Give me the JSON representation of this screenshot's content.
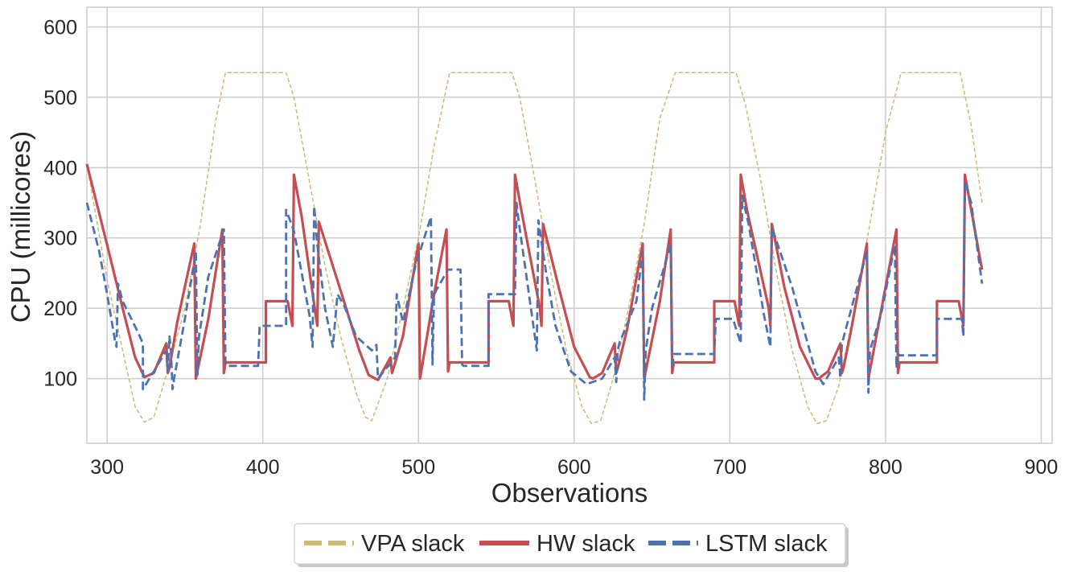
{
  "chart_data": {
    "type": "line",
    "title": "",
    "xlabel": "Observations",
    "ylabel": "CPU (millicores)",
    "xlim": [
      287,
      907
    ],
    "ylim": [
      8,
      628
    ],
    "xticks": [
      300,
      400,
      500,
      600,
      700,
      800,
      900
    ],
    "yticks": [
      100,
      200,
      300,
      400,
      500,
      600
    ],
    "grid": true,
    "legend": {
      "placement": "bottom-center, below plot",
      "entries": [
        "VPA slack",
        "HW slack",
        "LSTM slack"
      ]
    },
    "series": [
      {
        "name": "VPA slack",
        "color": "#ccb974",
        "style": "dashed-thin",
        "x": [
          287,
          300,
          310,
          318,
          324,
          330,
          340,
          350,
          360,
          370,
          376,
          400,
          415,
          420,
          430,
          440,
          450,
          460,
          466,
          470,
          480,
          490,
          500,
          510,
          520,
          540,
          560,
          565,
          575,
          585,
          595,
          605,
          611,
          617,
          625,
          635,
          645,
          655,
          665,
          690,
          704,
          710,
          720,
          730,
          740,
          750,
          756,
          762,
          770,
          780,
          790,
          800,
          810,
          820,
          848,
          855,
          862
        ],
        "y": [
          405,
          240,
          140,
          60,
          38,
          45,
          120,
          200,
          320,
          470,
          535,
          535,
          535,
          500,
          380,
          260,
          160,
          80,
          45,
          40,
          100,
          200,
          300,
          430,
          535,
          535,
          535,
          500,
          380,
          250,
          140,
          60,
          36,
          40,
          100,
          200,
          320,
          470,
          535,
          535,
          535,
          490,
          380,
          250,
          140,
          60,
          36,
          40,
          90,
          200,
          320,
          450,
          535,
          535,
          535,
          460,
          350
        ]
      },
      {
        "name": "HW slack",
        "color": "#c44e52",
        "style": "solid",
        "x": [
          287,
          300,
          310,
          318,
          324,
          330,
          338,
          339,
          340,
          345,
          356,
          357,
          365,
          374,
          375,
          376,
          397,
          402,
          402,
          416,
          419,
          420,
          425,
          434,
          435,
          436,
          450,
          462,
          468,
          474,
          482,
          483,
          484,
          490,
          500,
          501,
          510,
          518,
          519,
          520,
          527,
          540,
          545,
          545,
          558,
          561,
          562,
          566,
          578,
          579,
          580,
          590,
          600,
          610,
          612,
          618,
          626,
          627,
          628,
          634,
          644,
          645,
          655,
          662,
          663,
          664,
          669,
          690,
          690,
          703,
          706,
          707,
          711,
          725,
          726,
          727,
          735,
          745,
          755,
          757,
          763,
          771,
          772,
          773,
          778,
          788,
          789,
          800,
          807,
          808,
          809,
          814,
          833,
          833,
          847,
          850,
          851,
          855,
          862
        ],
        "y": [
          405,
          290,
          200,
          130,
          102,
          108,
          150,
          108,
          115,
          180,
          292,
          100,
          185,
          312,
          108,
          123,
          123,
          123,
          210,
          210,
          175,
          390,
          330,
          190,
          175,
          323,
          225,
          140,
          105,
          98,
          130,
          108,
          115,
          160,
          292,
          100,
          220,
          312,
          110,
          123,
          123,
          123,
          123,
          210,
          210,
          175,
          390,
          340,
          200,
          175,
          320,
          230,
          145,
          102,
          100,
          108,
          150,
          108,
          115,
          170,
          292,
          100,
          210,
          312,
          108,
          123,
          123,
          123,
          210,
          210,
          175,
          390,
          340,
          200,
          175,
          320,
          230,
          145,
          100,
          100,
          110,
          150,
          108,
          115,
          170,
          292,
          100,
          230,
          312,
          108,
          123,
          123,
          123,
          210,
          210,
          175,
          390,
          340,
          255
        ]
      },
      {
        "name": "LSTM slack",
        "color": "#4c72b0",
        "style": "dashed",
        "x": [
          287,
          295,
          300,
          305,
          306,
          307,
          310,
          320,
          323,
          323,
          330,
          338,
          339,
          340,
          341,
          342,
          343,
          350,
          357,
          358,
          359,
          365,
          375,
          376,
          377,
          378,
          382,
          397,
          398,
          415,
          415,
          420,
          430,
          432,
          433,
          435,
          440,
          445,
          448,
          452,
          460,
          470,
          473,
          474,
          485,
          486,
          490,
          498,
          508,
          509,
          510,
          519,
          520,
          527,
          528,
          529,
          545,
          545,
          562,
          563,
          564,
          576,
          577,
          578,
          582,
          588,
          598,
          608,
          618,
          626,
          627,
          628,
          629,
          640,
          644,
          645,
          646,
          650,
          662,
          663,
          664,
          665,
          690,
          691,
          702,
          707,
          708,
          712,
          722,
          726,
          727,
          740,
          755,
          760,
          770,
          771,
          772,
          783,
          788,
          789,
          790,
          797,
          806,
          807,
          808,
          809,
          833,
          833,
          849,
          850,
          851,
          855,
          862
        ],
        "y": [
          350,
          280,
          220,
          155,
          145,
          235,
          210,
          165,
          150,
          85,
          110,
          140,
          110,
          160,
          140,
          85,
          100,
          185,
          280,
          105,
          160,
          245,
          312,
          120,
          118,
          118,
          118,
          118,
          175,
          175,
          340,
          310,
          190,
          145,
          345,
          290,
          200,
          145,
          220,
          205,
          160,
          140,
          148,
          100,
          130,
          220,
          180,
          260,
          330,
          120,
          220,
          255,
          255,
          255,
          120,
          118,
          118,
          220,
          220,
          350,
          330,
          140,
          325,
          310,
          250,
          175,
          110,
          92,
          100,
          130,
          95,
          140,
          150,
          210,
          280,
          70,
          140,
          200,
          290,
          115,
          135,
          135,
          135,
          185,
          185,
          150,
          360,
          320,
          190,
          145,
          315,
          230,
          110,
          92,
          130,
          100,
          150,
          240,
          280,
          80,
          140,
          190,
          290,
          115,
          135,
          133,
          133,
          185,
          185,
          160,
          380,
          350,
          235
        ]
      }
    ]
  }
}
